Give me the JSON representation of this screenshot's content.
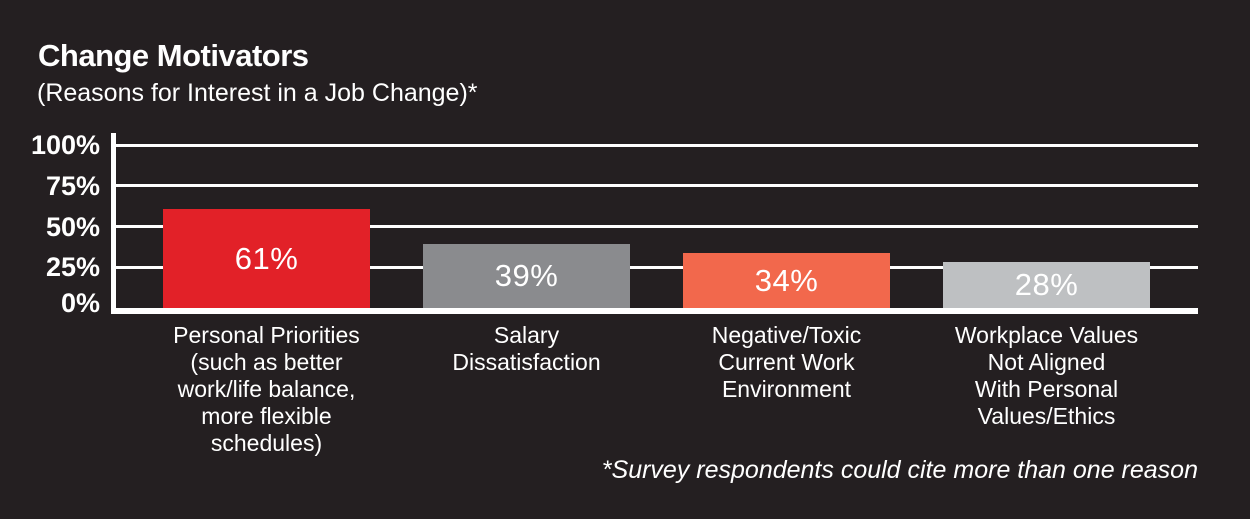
{
  "chart_data": {
    "type": "bar",
    "title": "Change Motivators",
    "subtitle": "(Reasons for Interest in a Job Change)*",
    "footnote": "*Survey respondents could cite more than one reason",
    "categories": [
      "Personal Priorities\n(such as better\nwork/life balance,\nmore flexible\nschedules)",
      "Salary\nDissatisfaction",
      "Negative/Toxic\nCurrent Work\nEnvironment",
      "Workplace Values\nNot Aligned\nWith Personal\nValues/Ethics"
    ],
    "values": [
      61,
      39,
      34,
      28
    ],
    "value_labels": [
      "61%",
      "39%",
      "34%",
      "28%"
    ],
    "bar_colors": [
      "#e22128",
      "#8a8b8e",
      "#f2684c",
      "#bec0c2"
    ],
    "bar_names": [
      "personal-priorities",
      "salary-dissatisfaction",
      "toxic-environment",
      "values-not-aligned"
    ],
    "y_axis": {
      "tick_values": [
        100,
        75,
        50,
        25,
        0
      ],
      "tick_labels": [
        "100%",
        "75%",
        "50%",
        "25%",
        "0%"
      ],
      "ylim": [
        0,
        100
      ]
    },
    "grid": true,
    "legend": "none",
    "colors": {
      "background": "#241f21",
      "axis": "#ffffff",
      "text": "#ffffff"
    }
  }
}
